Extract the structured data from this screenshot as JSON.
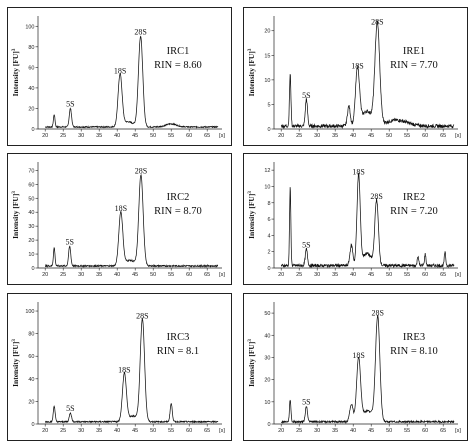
{
  "chart_data": [
    {
      "type": "line",
      "ylabel": "Intensity [FU]",
      "ylabel_sup": "3",
      "xunit": "[s]",
      "xticks": [
        20,
        25,
        30,
        35,
        40,
        45,
        50,
        55,
        60,
        65
      ],
      "xlim": [
        18,
        68
      ],
      "ylim": [
        0,
        110
      ],
      "yticks": [
        0,
        20,
        40,
        60,
        80,
        100
      ],
      "baseline": 2,
      "noise": 0.6,
      "sample": "IRC1",
      "rin": "RIN = 8.60",
      "peaks": [
        {
          "x": 22.5,
          "y": 12,
          "w": 0.22
        },
        {
          "x": 27.0,
          "y": 18,
          "w": 0.32,
          "label": "5S"
        },
        {
          "x": 40.8,
          "y": 50,
          "w": 0.55,
          "label": "18S"
        },
        {
          "x": 46.5,
          "y": 88,
          "w": 0.6,
          "label": "28S"
        },
        {
          "x": 43.0,
          "y": 5,
          "w": 1.6
        },
        {
          "x": 55.0,
          "y": 3,
          "w": 1.5
        }
      ]
    },
    {
      "type": "line",
      "ylabel": "Intensity [FU]",
      "ylabel_sup": "3",
      "xunit": "[s]",
      "xticks": [
        20,
        25,
        30,
        35,
        40,
        45,
        50,
        55,
        60,
        65
      ],
      "xlim": [
        18,
        68
      ],
      "ylim": [
        0,
        23
      ],
      "yticks": [
        0,
        5,
        10,
        15,
        20
      ],
      "baseline": 0.6,
      "noise": 0.35,
      "sample": "IRE1",
      "rin": "RIN = 7.70",
      "peaks": [
        {
          "x": 22.5,
          "y": 10.5,
          "w": 0.2
        },
        {
          "x": 27.0,
          "y": 5.5,
          "w": 0.3,
          "label": "5S"
        },
        {
          "x": 38.8,
          "y": 4.0,
          "w": 0.4
        },
        {
          "x": 41.2,
          "y": 11.5,
          "w": 0.55,
          "label": "18S"
        },
        {
          "x": 46.7,
          "y": 20.5,
          "w": 0.65,
          "label": "28S"
        },
        {
          "x": 43.8,
          "y": 3.0,
          "w": 1.5
        },
        {
          "x": 52.0,
          "y": 1.2,
          "w": 3.0
        }
      ]
    },
    {
      "type": "line",
      "ylabel": "Intensity [FU]",
      "ylabel_sup": "3",
      "xunit": "[s]",
      "xticks": [
        20,
        25,
        30,
        35,
        40,
        45,
        50,
        55,
        60,
        65
      ],
      "xlim": [
        18,
        68
      ],
      "ylim": [
        0,
        76
      ],
      "yticks": [
        0,
        10,
        20,
        30,
        40,
        50,
        60,
        70
      ],
      "baseline": 1.5,
      "noise": 0.5,
      "sample": "IRC2",
      "rin": "RIN = 8.70",
      "peaks": [
        {
          "x": 22.5,
          "y": 13,
          "w": 0.22
        },
        {
          "x": 26.8,
          "y": 14,
          "w": 0.3,
          "label": "5S"
        },
        {
          "x": 41.0,
          "y": 38,
          "w": 0.55,
          "label": "18S"
        },
        {
          "x": 46.6,
          "y": 65,
          "w": 0.6,
          "label": "28S"
        },
        {
          "x": 43.5,
          "y": 4,
          "w": 1.5
        }
      ]
    },
    {
      "type": "line",
      "ylabel": "Intensity [FU]",
      "ylabel_sup": "3",
      "xunit": "[s]",
      "xticks": [
        20,
        25,
        30,
        35,
        40,
        45,
        50,
        55,
        60,
        65
      ],
      "xlim": [
        18,
        68
      ],
      "ylim": [
        0,
        13
      ],
      "yticks": [
        0,
        2,
        4,
        6,
        8,
        10,
        12
      ],
      "baseline": 0.3,
      "noise": 0.18,
      "sample": "IRE2",
      "rin": "RIN = 7.20",
      "peaks": [
        {
          "x": 22.5,
          "y": 9.5,
          "w": 0.18
        },
        {
          "x": 27.0,
          "y": 2.0,
          "w": 0.3,
          "label": "5S"
        },
        {
          "x": 39.5,
          "y": 2.5,
          "w": 0.4
        },
        {
          "x": 41.5,
          "y": 11.0,
          "w": 0.45,
          "label": "18S"
        },
        {
          "x": 46.5,
          "y": 8.0,
          "w": 0.5,
          "label": "28S"
        },
        {
          "x": 43.8,
          "y": 1.5,
          "w": 1.2
        },
        {
          "x": 58.0,
          "y": 1.2,
          "w": 0.2
        },
        {
          "x": 60.0,
          "y": 1.4,
          "w": 0.2
        },
        {
          "x": 65.5,
          "y": 1.6,
          "w": 0.2
        }
      ]
    },
    {
      "type": "line",
      "ylabel": "Intensity [FU]",
      "ylabel_sup": "3",
      "xunit": "[s]",
      "xticks": [
        20,
        25,
        30,
        35,
        40,
        45,
        50,
        55,
        60,
        65
      ],
      "xlim": [
        18,
        68
      ],
      "ylim": [
        0,
        108
      ],
      "yticks": [
        0,
        20,
        40,
        60,
        80,
        100
      ],
      "baseline": 2,
      "noise": 0.6,
      "sample": "IRC3",
      "rin": "RIN = 8.1",
      "peaks": [
        {
          "x": 22.5,
          "y": 14,
          "w": 0.25
        },
        {
          "x": 27.0,
          "y": 8,
          "w": 0.3,
          "label": "5S"
        },
        {
          "x": 42.0,
          "y": 42,
          "w": 0.55,
          "label": "18S"
        },
        {
          "x": 47.0,
          "y": 90,
          "w": 0.6,
          "label": "28S"
        },
        {
          "x": 55.0,
          "y": 16,
          "w": 0.3
        },
        {
          "x": 44.5,
          "y": 5,
          "w": 1.5
        }
      ]
    },
    {
      "type": "line",
      "ylabel": "Intensity [FU]",
      "ylabel_sup": "3",
      "xunit": "[s]",
      "xticks": [
        20,
        25,
        30,
        35,
        40,
        45,
        50,
        55,
        60,
        65
      ],
      "xlim": [
        18,
        68
      ],
      "ylim": [
        0,
        55
      ],
      "yticks": [
        0,
        10,
        20,
        30,
        40,
        50
      ],
      "baseline": 1,
      "noise": 0.4,
      "sample": "IRE3",
      "rin": "RIN = 8.10",
      "peaks": [
        {
          "x": 22.5,
          "y": 10,
          "w": 0.2
        },
        {
          "x": 27.0,
          "y": 7,
          "w": 0.3,
          "label": "5S"
        },
        {
          "x": 39.5,
          "y": 8,
          "w": 0.45
        },
        {
          "x": 41.5,
          "y": 28,
          "w": 0.55,
          "label": "18S"
        },
        {
          "x": 46.8,
          "y": 47,
          "w": 0.6,
          "label": "28S"
        },
        {
          "x": 44.0,
          "y": 5,
          "w": 1.5
        }
      ]
    }
  ]
}
